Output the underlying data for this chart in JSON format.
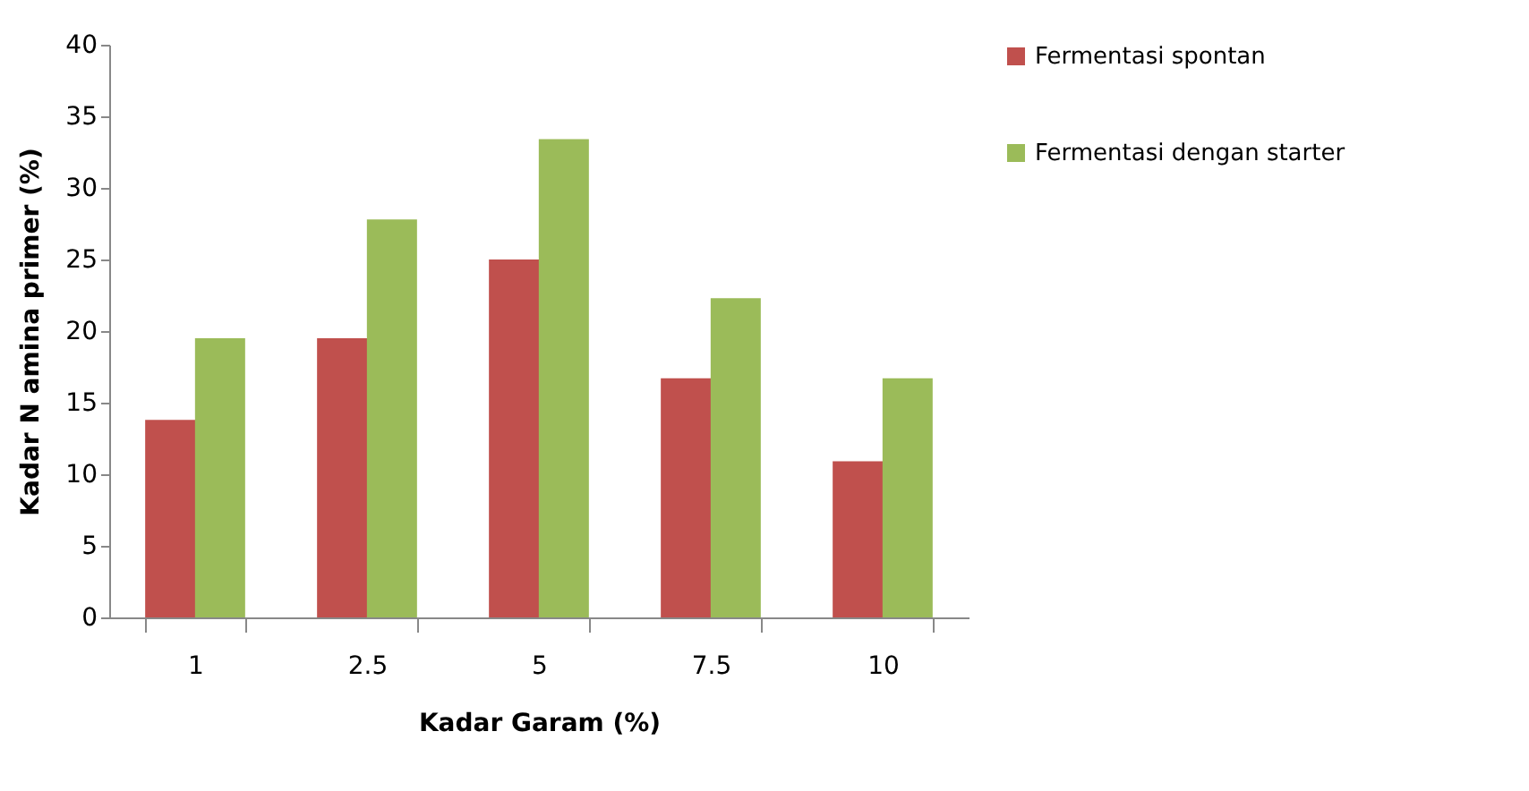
{
  "chart_data": {
    "type": "bar",
    "xlabel": "Kadar Garam  (%)",
    "ylabel": "Kadar N amina  primer (%)",
    "categories": [
      "1",
      "2.5",
      "5",
      "7.5",
      "10"
    ],
    "series": [
      {
        "name": "Fermentasi spontan",
        "color": "#c0504d",
        "values": [
          13.8,
          19.5,
          25.0,
          16.7,
          10.9
        ]
      },
      {
        "name": "Fermentasi dengan starter",
        "color": "#9bbb59",
        "values": [
          19.5,
          27.8,
          33.4,
          22.3,
          16.7
        ]
      }
    ],
    "ylim": [
      0,
      40
    ],
    "yticks": [
      0,
      5,
      10,
      15,
      20,
      25,
      30,
      35,
      40
    ],
    "grid": false,
    "legend": "right"
  }
}
